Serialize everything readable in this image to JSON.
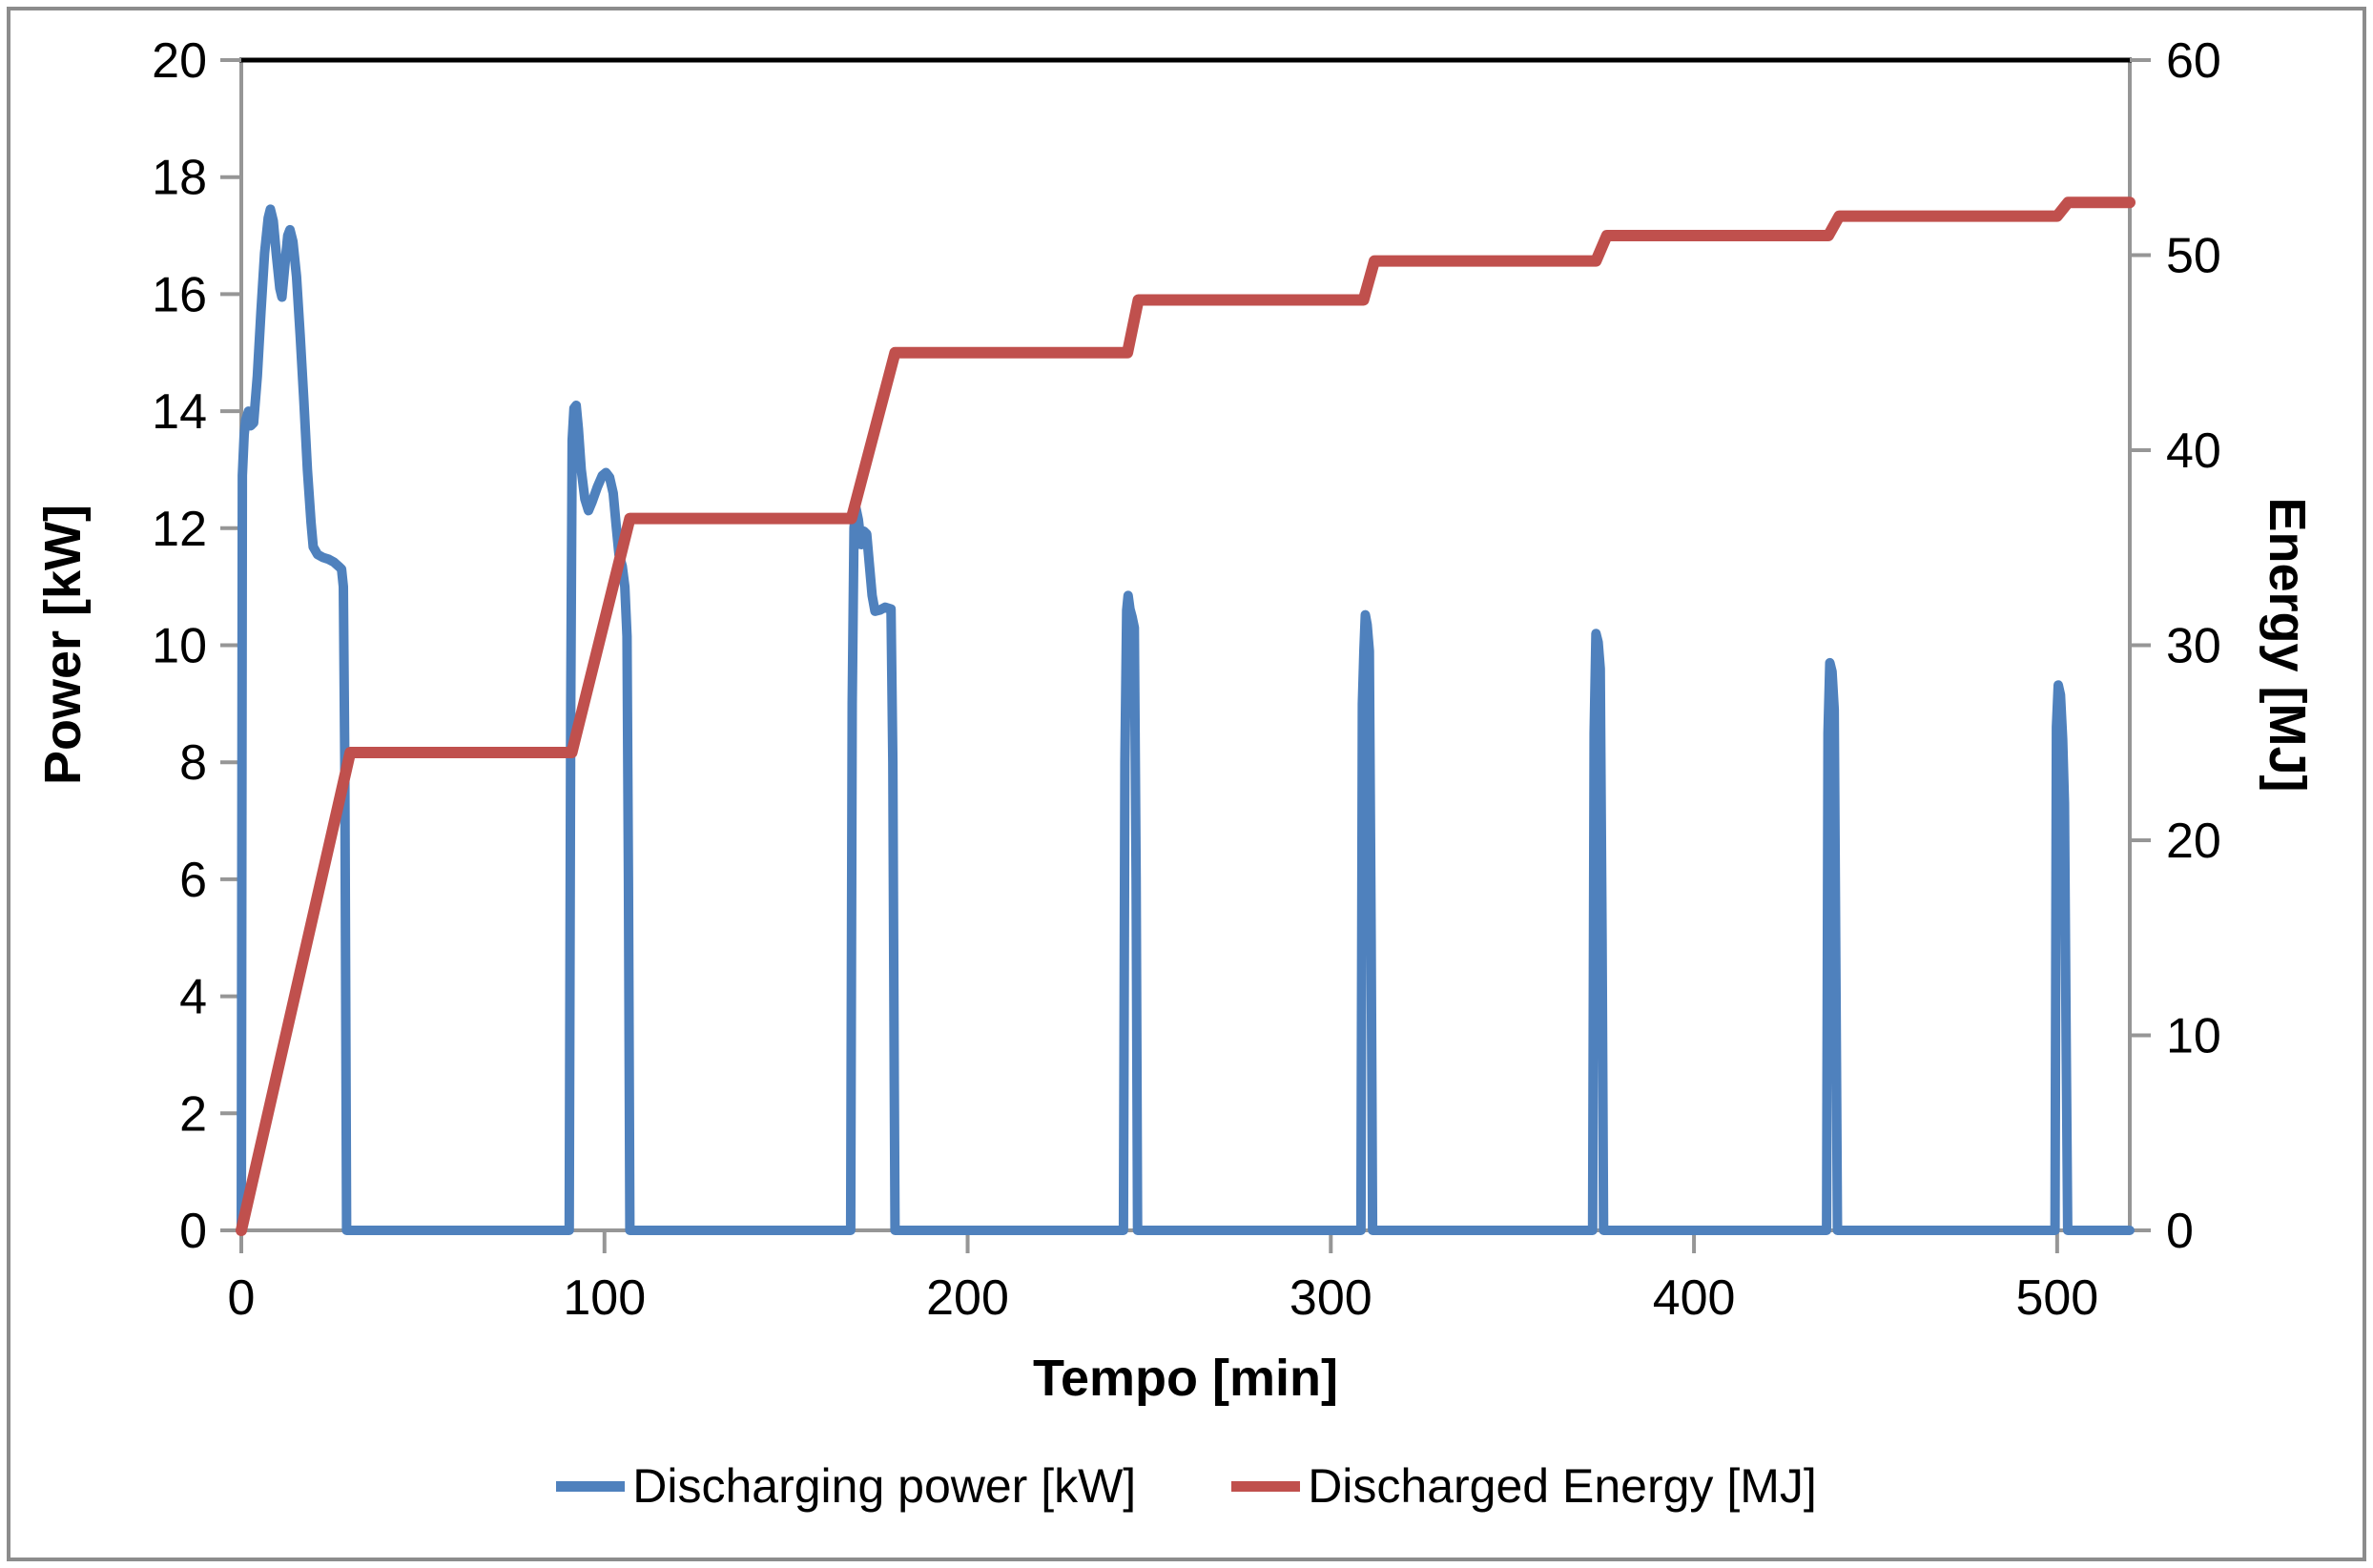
{
  "chart_data": {
    "type": "line",
    "title": "",
    "x_axis": {
      "label": "Tempo [min]",
      "min": 0,
      "max": 520,
      "ticks": [
        0,
        100,
        200,
        300,
        400,
        500
      ]
    },
    "y_left": {
      "label": "Power [kW]",
      "min": 0,
      "max": 20,
      "ticks": [
        0,
        2,
        4,
        6,
        8,
        10,
        12,
        14,
        16,
        18,
        20
      ]
    },
    "y_right": {
      "label": "Energy [MJ]",
      "min": 0,
      "max": 60,
      "ticks": [
        0,
        10,
        20,
        30,
        40,
        50,
        60
      ]
    },
    "grid": false,
    "legend_position": "bottom",
    "series": [
      {
        "name": "Discharging power [kW]",
        "data_name": "discharging-power-line",
        "axis": "left",
        "color": "#4F81BD",
        "points": [
          [
            0,
            0
          ],
          [
            0.3,
            12.9
          ],
          [
            0.8,
            13.6
          ],
          [
            1.2,
            13.85
          ],
          [
            2,
            14.0
          ],
          [
            2.6,
            13.75
          ],
          [
            3.4,
            13.8
          ],
          [
            4.4,
            14.6
          ],
          [
            5.4,
            15.7
          ],
          [
            6.4,
            16.7
          ],
          [
            7.4,
            17.3
          ],
          [
            8,
            17.45
          ],
          [
            8.8,
            17.25
          ],
          [
            9.6,
            16.7
          ],
          [
            10.6,
            16.1
          ],
          [
            11.2,
            15.95
          ],
          [
            12,
            16.5
          ],
          [
            12.8,
            17.0
          ],
          [
            13.4,
            17.1
          ],
          [
            14.2,
            16.9
          ],
          [
            15.2,
            16.3
          ],
          [
            16.2,
            15.3
          ],
          [
            17.2,
            14.2
          ],
          [
            18.2,
            13.0
          ],
          [
            19.2,
            12.1
          ],
          [
            19.8,
            11.68
          ],
          [
            21,
            11.55
          ],
          [
            22.5,
            11.5
          ],
          [
            24,
            11.47
          ],
          [
            25.5,
            11.42
          ],
          [
            26.8,
            11.35
          ],
          [
            27.6,
            11.3
          ],
          [
            28.1,
            11.0
          ],
          [
            28.5,
            8.0
          ],
          [
            28.8,
            3.0
          ],
          [
            29,
            0
          ],
          [
            90.3,
            0
          ],
          [
            90.7,
            9.0
          ],
          [
            91.1,
            13.5
          ],
          [
            91.6,
            14.05
          ],
          [
            92.2,
            14.1
          ],
          [
            92.8,
            13.7
          ],
          [
            93.6,
            13.0
          ],
          [
            94.6,
            12.5
          ],
          [
            95.6,
            12.3
          ],
          [
            96.6,
            12.45
          ],
          [
            98,
            12.7
          ],
          [
            99.4,
            12.9
          ],
          [
            100.4,
            12.95
          ],
          [
            101.4,
            12.87
          ],
          [
            102.4,
            12.6
          ],
          [
            103.2,
            12.05
          ],
          [
            104,
            11.55
          ],
          [
            104.9,
            11.35
          ],
          [
            105.6,
            11.0
          ],
          [
            106.2,
            10.15
          ],
          [
            106.6,
            6.0
          ],
          [
            107,
            0
          ],
          [
            167.8,
            0
          ],
          [
            168.2,
            9.0
          ],
          [
            168.7,
            12.0
          ],
          [
            169.2,
            12.35
          ],
          [
            169.9,
            12.15
          ],
          [
            170.7,
            11.72
          ],
          [
            171.4,
            11.95
          ],
          [
            172.2,
            11.9
          ],
          [
            172.9,
            11.4
          ],
          [
            173.7,
            10.85
          ],
          [
            174.5,
            10.58
          ],
          [
            175.8,
            10.6
          ],
          [
            177.3,
            10.65
          ],
          [
            178.9,
            10.62
          ],
          [
            179.4,
            8.0
          ],
          [
            179.8,
            2.5
          ],
          [
            180,
            0
          ],
          [
            242.9,
            0
          ],
          [
            243.3,
            8.0
          ],
          [
            243.8,
            10.6
          ],
          [
            244.2,
            10.85
          ],
          [
            244.7,
            10.62
          ],
          [
            245.3,
            10.48
          ],
          [
            245.9,
            10.3
          ],
          [
            246.4,
            6.0
          ],
          [
            246.8,
            0
          ],
          [
            308.3,
            0
          ],
          [
            308.7,
            9.0
          ],
          [
            309.1,
            9.9
          ],
          [
            309.5,
            10.52
          ],
          [
            310,
            10.35
          ],
          [
            310.6,
            9.9
          ],
          [
            311.1,
            5.0
          ],
          [
            311.5,
            0
          ],
          [
            372.1,
            0
          ],
          [
            372.5,
            8.5
          ],
          [
            373,
            10.2
          ],
          [
            373.6,
            10.05
          ],
          [
            374.2,
            9.6
          ],
          [
            374.7,
            5.0
          ],
          [
            375.1,
            0
          ],
          [
            436.5,
            0
          ],
          [
            436.9,
            8.5
          ],
          [
            437.4,
            9.7
          ],
          [
            438,
            9.55
          ],
          [
            438.6,
            8.9
          ],
          [
            439.1,
            4.0
          ],
          [
            439.5,
            0
          ],
          [
            499.4,
            0
          ],
          [
            499.8,
            8.6
          ],
          [
            500.3,
            9.32
          ],
          [
            500.9,
            9.15
          ],
          [
            501.5,
            8.4
          ],
          [
            502,
            7.3
          ],
          [
            502.5,
            3.0
          ],
          [
            502.9,
            0
          ],
          [
            520,
            0
          ]
        ]
      },
      {
        "name": "Discharged Energy [MJ]",
        "data_name": "discharged-energy-line",
        "axis": "right",
        "color": "#C0504D",
        "points": [
          [
            0,
            0
          ],
          [
            30,
            24.5
          ],
          [
            91,
            24.5
          ],
          [
            107,
            36.5
          ],
          [
            168,
            36.5
          ],
          [
            180,
            45.0
          ],
          [
            244,
            45.0
          ],
          [
            247,
            47.7
          ],
          [
            309,
            47.7
          ],
          [
            312,
            49.7
          ],
          [
            373,
            49.7
          ],
          [
            376,
            51.0
          ],
          [
            437,
            51.0
          ],
          [
            440,
            52.0
          ],
          [
            500,
            52.0
          ],
          [
            503,
            52.7
          ],
          [
            520,
            52.7
          ]
        ]
      }
    ]
  },
  "colors": {
    "axis": "#969696",
    "plot_top_border": "#000000",
    "frame": "#8c8c8c",
    "tick_text": "#000000"
  }
}
